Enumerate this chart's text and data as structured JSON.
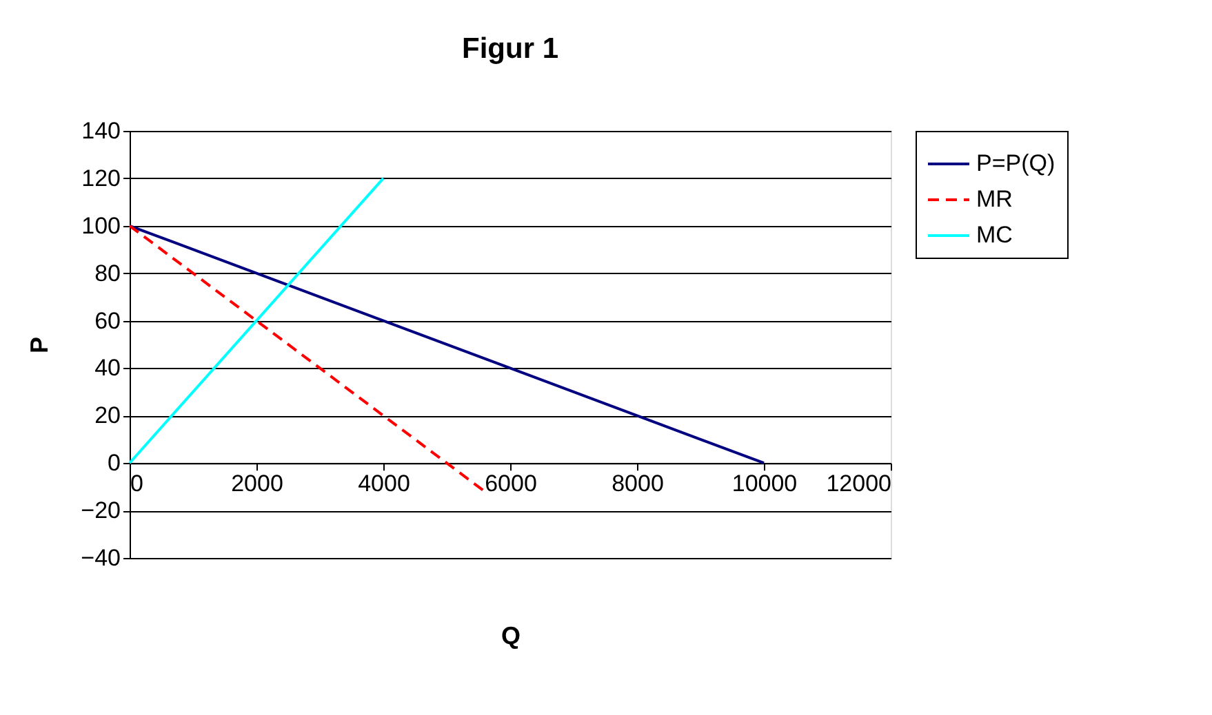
{
  "chart_data": {
    "type": "line",
    "title": "Figur 1",
    "xlabel": "Q",
    "ylabel": "P",
    "xlim": [
      0,
      12000
    ],
    "xticks": [
      0,
      2000,
      4000,
      6000,
      8000,
      10000,
      12000
    ],
    "ylim": [
      -40,
      140
    ],
    "yticks": [
      -40,
      -20,
      0,
      20,
      40,
      60,
      80,
      100,
      120,
      140
    ],
    "grid": "y",
    "legend": "right",
    "marker": "none",
    "series": [
      {
        "name": "P=P(Q)",
        "color": "#000080",
        "x": [
          0,
          10000
        ],
        "values": [
          100,
          0
        ],
        "line_style": "solid"
      },
      {
        "name": "MR",
        "color": "#ff0000",
        "x": [
          0,
          5600
        ],
        "values": [
          100,
          -12
        ],
        "line_style": "dashed"
      },
      {
        "name": "MC",
        "color": "#00ffff",
        "x": [
          0,
          4000
        ],
        "values": [
          0,
          120
        ],
        "line_style": "solid"
      }
    ]
  }
}
